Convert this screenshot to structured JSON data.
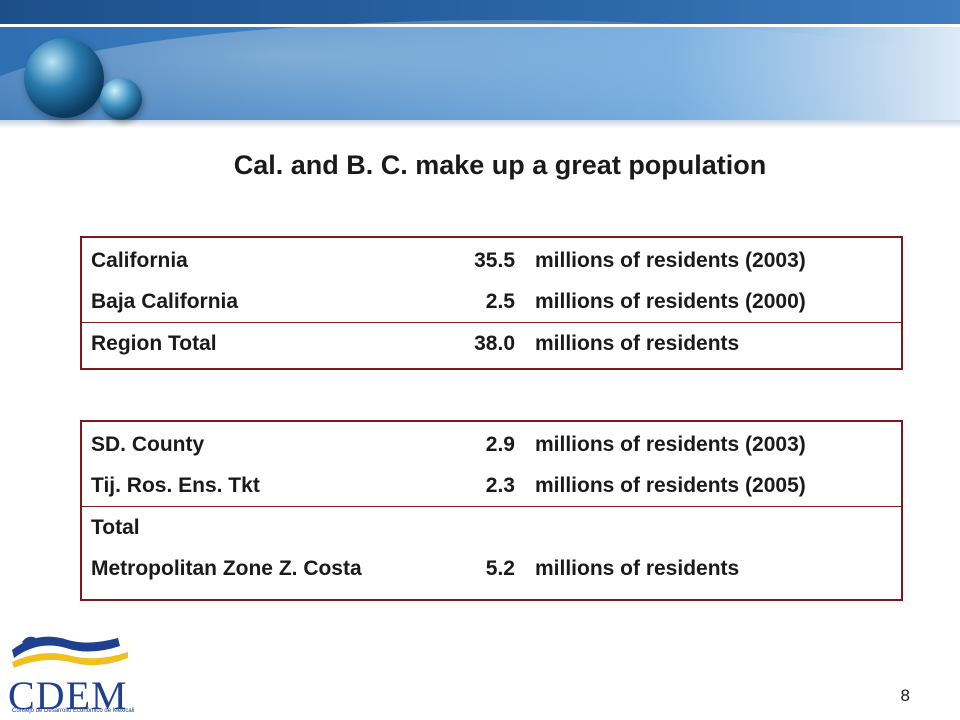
{
  "title": "Cal. and B. C. make up a great population",
  "table1": {
    "rows": [
      {
        "label": "California",
        "value": "35.5",
        "desc": "millions of residents (2003)"
      },
      {
        "label": "Baja California",
        "value": "2.5",
        "desc": "millions of residents (2000)"
      },
      {
        "label": "Region Total",
        "value": "38.0",
        "desc": "millions of residents"
      }
    ]
  },
  "table2": {
    "rows": [
      {
        "label": "SD. County",
        "value": "2.9",
        "desc": "millions of residents (2003)"
      },
      {
        "label": "Tij. Ros. Ens. Tkt",
        "value": "2.3",
        "desc": "millions of residents (2005)"
      },
      {
        "label": "Total",
        "value": "",
        "desc": ""
      },
      {
        "label": "Metropolitan Zone Z. Costa",
        "value": "5.2",
        "desc": "millions of residents"
      }
    ]
  },
  "logo": {
    "name": "CDEM",
    "subtitle": "Consejo de Desarrollo Económico de Mexicali"
  },
  "page_number": "8",
  "colors": {
    "header_blue": "#2e6fb2",
    "table_border": "#7a1a1a",
    "logo_blue": "#1f3f8f",
    "logo_yellow": "#f0c020"
  }
}
